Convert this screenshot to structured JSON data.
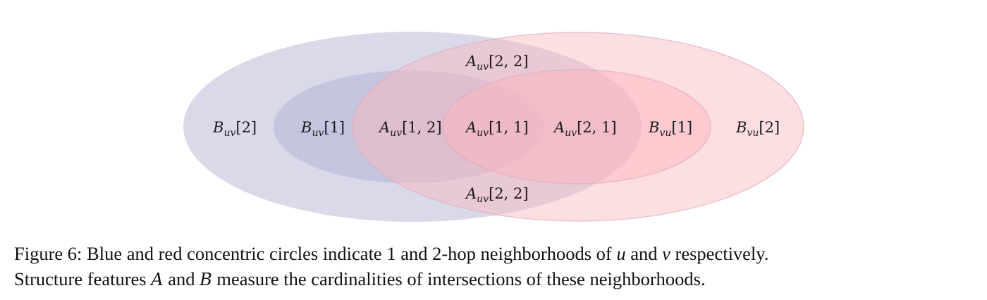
{
  "figure": {
    "colors": {
      "blue_fill": "#b6b4d6",
      "red_fill": "#fbb6bd",
      "blue_outer_opacity": 0.5,
      "blue_inner_opacity": 0.55,
      "red_outer_opacity": 0.45,
      "red_inner_opacity": 0.5,
      "red_stroke": "#dca9c0"
    },
    "labels": {
      "b_uv_2": {
        "cal": "B",
        "sub": "uv",
        "idx": "[2]"
      },
      "b_uv_1": {
        "cal": "B",
        "sub": "uv",
        "idx": "[1]"
      },
      "a_uv_12": {
        "cal": "A",
        "sub": "uv",
        "idx": "[1, 2]"
      },
      "a_uv_11": {
        "cal": "A",
        "sub": "uv",
        "idx": "[1, 1]"
      },
      "a_uv_21": {
        "cal": "A",
        "sub": "uv",
        "idx": "[2, 1]"
      },
      "b_vu_1": {
        "cal": "B",
        "sub": "vu",
        "idx": "[1]"
      },
      "b_vu_2": {
        "cal": "B",
        "sub": "vu",
        "idx": "[2]"
      },
      "a_uv_22_top": {
        "cal": "A",
        "sub": "uv",
        "idx": "[2, 2]"
      },
      "a_uv_22_bottom": {
        "cal": "A",
        "sub": "uv",
        "idx": "[2, 2]"
      }
    }
  },
  "caption": {
    "line1_a": "Figure 6: Blue and red concentric circles indicate 1 and 2-hop neighborhoods of ",
    "var_u": "u",
    "line1_b": " and ",
    "var_v": "v",
    "line1_c": " respectively.",
    "line2_a": "Structure features ",
    "sym_a": "A",
    "line2_b": " and ",
    "sym_b": "B",
    "line2_c": " measure the cardinalities of intersections of these neighborhoods."
  }
}
